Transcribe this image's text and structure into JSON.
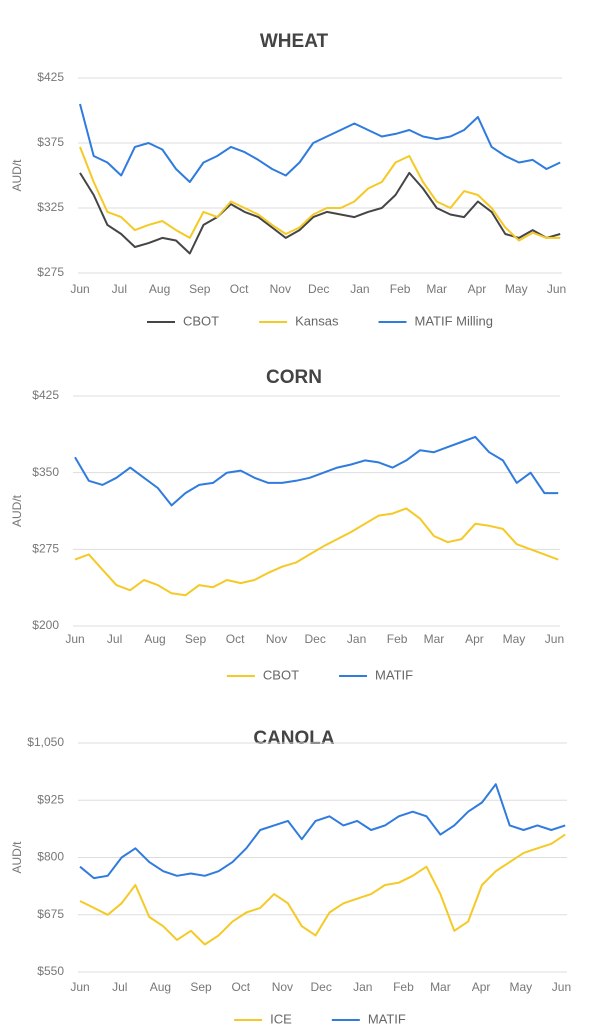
{
  "chart_data": [
    {
      "type": "line",
      "title": "WHEAT",
      "ylabel": "AUD/t",
      "x": [
        0,
        1.5,
        3,
        4.5,
        6,
        7.5,
        9,
        10.5,
        12,
        13.5,
        15,
        16.5,
        18,
        19.5,
        21,
        22.5,
        24,
        25.5,
        27,
        28.5,
        30,
        31.5,
        33,
        34.5,
        36,
        37.5,
        39,
        40.5,
        42,
        43.5,
        45,
        46.5,
        48,
        49.5,
        51,
        52.5
      ],
      "xlim": [
        0,
        52.7
      ],
      "xticks": [
        {
          "value": 0,
          "label": "Jun"
        },
        {
          "value": 4.3,
          "label": "Jul"
        },
        {
          "value": 8.7,
          "label": "Aug"
        },
        {
          "value": 13.1,
          "label": "Sep"
        },
        {
          "value": 17.4,
          "label": "Oct"
        },
        {
          "value": 21.9,
          "label": "Nov"
        },
        {
          "value": 26.1,
          "label": "Dec"
        },
        {
          "value": 30.6,
          "label": "Jan"
        },
        {
          "value": 35,
          "label": "Feb"
        },
        {
          "value": 39,
          "label": "Mar"
        },
        {
          "value": 43.4,
          "label": "Apr"
        },
        {
          "value": 47.7,
          "label": "May"
        },
        {
          "value": 52.1,
          "label": "Jun"
        }
      ],
      "ylim": [
        275,
        425
      ],
      "yticks": [
        {
          "value": 275,
          "label": "$275"
        },
        {
          "value": 325,
          "label": "$325"
        },
        {
          "value": 375,
          "label": "$375"
        },
        {
          "value": 425,
          "label": "$425"
        }
      ],
      "grid": true,
      "series": [
        {
          "name": "CBOT",
          "color": "#454545",
          "values": [
            352,
            335,
            312,
            305,
            295,
            298,
            302,
            300,
            290,
            312,
            318,
            328,
            322,
            318,
            310,
            302,
            308,
            318,
            322,
            320,
            318,
            322,
            325,
            335,
            352,
            340,
            325,
            320,
            318,
            330,
            322,
            305,
            302,
            308,
            302,
            305
          ]
        },
        {
          "name": "Kansas",
          "color": "#f5c926",
          "values": [
            372,
            345,
            322,
            318,
            308,
            312,
            315,
            308,
            302,
            322,
            318,
            330,
            325,
            320,
            312,
            305,
            310,
            320,
            325,
            325,
            330,
            340,
            345,
            360,
            365,
            345,
            330,
            325,
            338,
            335,
            325,
            310,
            300,
            306,
            302,
            302
          ]
        },
        {
          "name": "MATIF Milling",
          "color": "#2f7bde",
          "values": [
            405,
            365,
            360,
            350,
            372,
            375,
            370,
            355,
            345,
            360,
            365,
            372,
            368,
            362,
            355,
            350,
            360,
            375,
            380,
            385,
            390,
            385,
            380,
            382,
            385,
            380,
            378,
            380,
            385,
            395,
            372,
            365,
            360,
            362,
            355,
            360
          ]
        }
      ]
    },
    {
      "type": "line",
      "title": "CORN",
      "ylabel": "AUD/t",
      "x": [
        0,
        1.5,
        3,
        4.5,
        6,
        7.5,
        9,
        10.5,
        12,
        13.5,
        15,
        16.5,
        18,
        19.5,
        21,
        22.5,
        24,
        25.5,
        27,
        28.5,
        30,
        31.5,
        33,
        34.5,
        36,
        37.5,
        39,
        40.5,
        42,
        43.5,
        45,
        46.5,
        48,
        49.5,
        51,
        52.5
      ],
      "xlim": [
        0,
        52.7
      ],
      "xticks": [
        {
          "value": 0,
          "label": "Jun"
        },
        {
          "value": 4.3,
          "label": "Jul"
        },
        {
          "value": 8.7,
          "label": "Aug"
        },
        {
          "value": 13.1,
          "label": "Sep"
        },
        {
          "value": 17.4,
          "label": "Oct"
        },
        {
          "value": 21.9,
          "label": "Nov"
        },
        {
          "value": 26.1,
          "label": "Dec"
        },
        {
          "value": 30.6,
          "label": "Jan"
        },
        {
          "value": 35,
          "label": "Feb"
        },
        {
          "value": 39,
          "label": "Mar"
        },
        {
          "value": 43.4,
          "label": "Apr"
        },
        {
          "value": 47.7,
          "label": "May"
        },
        {
          "value": 52.1,
          "label": "Jun"
        }
      ],
      "ylim": [
        200,
        425
      ],
      "yticks": [
        {
          "value": 200,
          "label": "$200"
        },
        {
          "value": 275,
          "label": "$275"
        },
        {
          "value": 350,
          "label": "$350"
        },
        {
          "value": 425,
          "label": "$425"
        }
      ],
      "grid": true,
      "series": [
        {
          "name": "CBOT",
          "color": "#f5c926",
          "values": [
            265,
            270,
            255,
            240,
            235,
            245,
            240,
            232,
            230,
            240,
            238,
            245,
            242,
            245,
            252,
            258,
            262,
            270,
            278,
            285,
            292,
            300,
            308,
            310,
            315,
            305,
            288,
            282,
            285,
            300,
            298,
            295,
            280,
            275,
            270,
            265
          ]
        },
        {
          "name": "MATIF",
          "color": "#2f7bde",
          "values": [
            365,
            342,
            338,
            345,
            355,
            345,
            335,
            318,
            330,
            338,
            340,
            350,
            352,
            345,
            340,
            340,
            342,
            345,
            350,
            355,
            358,
            362,
            360,
            355,
            362,
            372,
            370,
            375,
            380,
            385,
            370,
            362,
            340,
            350,
            330,
            330
          ]
        }
      ]
    },
    {
      "type": "line",
      "title": "CANOLA",
      "ylabel": "AUD/t",
      "x": [
        0,
        1.5,
        3,
        4.5,
        6,
        7.5,
        9,
        10.5,
        12,
        13.5,
        15,
        16.5,
        18,
        19.5,
        21,
        22.5,
        24,
        25.5,
        27,
        28.5,
        30,
        31.5,
        33,
        34.5,
        36,
        37.5,
        39,
        40.5,
        42,
        43.5,
        45,
        46.5,
        48,
        49.5,
        51,
        52.5
      ],
      "xlim": [
        0,
        52.7
      ],
      "xticks": [
        {
          "value": 0,
          "label": "Jun"
        },
        {
          "value": 4.3,
          "label": "Jul"
        },
        {
          "value": 8.7,
          "label": "Aug"
        },
        {
          "value": 13.1,
          "label": "Sep"
        },
        {
          "value": 17.4,
          "label": "Oct"
        },
        {
          "value": 21.9,
          "label": "Nov"
        },
        {
          "value": 26.1,
          "label": "Dec"
        },
        {
          "value": 30.6,
          "label": "Jan"
        },
        {
          "value": 35,
          "label": "Feb"
        },
        {
          "value": 39,
          "label": "Mar"
        },
        {
          "value": 43.4,
          "label": "Apr"
        },
        {
          "value": 47.7,
          "label": "May"
        },
        {
          "value": 52.1,
          "label": "Jun"
        }
      ],
      "ylim": [
        550,
        1050
      ],
      "yticks": [
        {
          "value": 550,
          "label": "$550"
        },
        {
          "value": 675,
          "label": "$675"
        },
        {
          "value": 800,
          "label": "$800"
        },
        {
          "value": 925,
          "label": "$925"
        },
        {
          "value": 1050,
          "label": "$1,050"
        }
      ],
      "grid": true,
      "series": [
        {
          "name": "ICE",
          "color": "#f5c926",
          "values": [
            705,
            690,
            675,
            700,
            740,
            670,
            650,
            620,
            640,
            610,
            630,
            660,
            680,
            690,
            720,
            700,
            650,
            630,
            680,
            700,
            710,
            720,
            740,
            745,
            760,
            780,
            720,
            640,
            660,
            740,
            770,
            790,
            810,
            820,
            830,
            850
          ]
        },
        {
          "name": "MATIF",
          "color": "#2f7bde",
          "values": [
            780,
            755,
            760,
            800,
            820,
            790,
            770,
            760,
            765,
            760,
            770,
            790,
            820,
            860,
            870,
            880,
            840,
            880,
            890,
            870,
            880,
            860,
            870,
            890,
            900,
            890,
            850,
            870,
            900,
            920,
            960,
            870,
            860,
            870,
            860,
            870
          ]
        }
      ]
    }
  ]
}
